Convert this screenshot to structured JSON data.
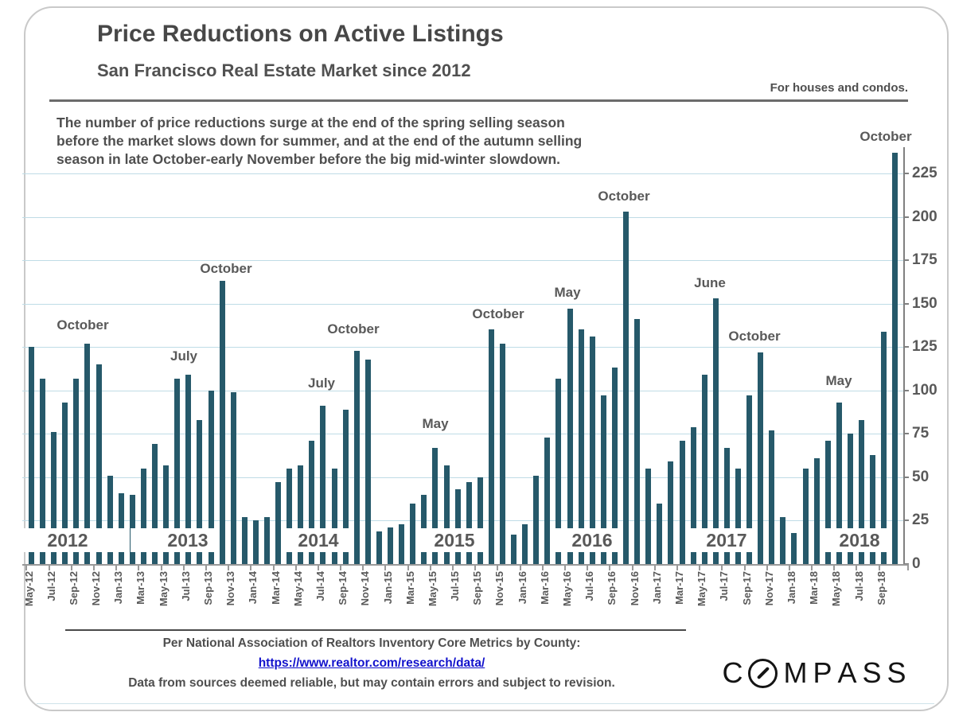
{
  "header": {
    "title": "Price Reductions on Active Listings",
    "subtitle": "San Francisco Real Estate Market since 2012",
    "tagline": "For houses and condos.",
    "description_lines": [
      "The number of price reductions surge at the end of the spring selling season",
      "before the market slows down for summer, and at the end of the autumn selling",
      "season in late October-early November before the big mid-winter slowdown."
    ]
  },
  "chart_data": {
    "type": "bar",
    "title": "Price Reductions on Active Listings",
    "xlabel": "",
    "ylabel": "",
    "ylim": [
      0,
      240
    ],
    "y_ticks": [
      0,
      25,
      50,
      75,
      100,
      125,
      150,
      175,
      200,
      225
    ],
    "y_axis_side": "right",
    "grid": true,
    "bar_color": "#26596A",
    "gridline_color": "#BFDCE6",
    "x_label_every": 2,
    "categories": [
      "May-12",
      "Jun-12",
      "Jul-12",
      "Aug-12",
      "Sep-12",
      "Oct-12",
      "Nov-12",
      "Dec-12",
      "Jan-13",
      "Feb-13",
      "Mar-13",
      "Apr-13",
      "May-13",
      "Jun-13",
      "Jul-13",
      "Aug-13",
      "Sep-13",
      "Oct-13",
      "Nov-13",
      "Dec-13",
      "Jan-14",
      "Feb-14",
      "Mar-14",
      "Apr-14",
      "May-14",
      "Jun-14",
      "Jul-14",
      "Aug-14",
      "Sep-14",
      "Oct-14",
      "Nov-14",
      "Dec-14",
      "Jan-15",
      "Feb-15",
      "Mar-15",
      "Apr-15",
      "May-15",
      "Jun-15",
      "Jul-15",
      "Aug-15",
      "Sep-15",
      "Oct-15",
      "Nov-15",
      "Dec-15",
      "Jan-16",
      "Feb-16",
      "Mar-16",
      "Apr-16",
      "May-16",
      "Jun-16",
      "Jul-16",
      "Aug-16",
      "Sep-16",
      "Oct-16",
      "Nov-16",
      "Dec-16",
      "Jan-17",
      "Feb-17",
      "Mar-17",
      "Apr-17",
      "May-17",
      "Jun-17",
      "Jul-17",
      "Aug-17",
      "Sep-17",
      "Oct-17",
      "Nov-17",
      "Dec-17",
      "Jan-18",
      "Feb-18",
      "Mar-18",
      "Apr-18",
      "May-18",
      "Jun-18",
      "Jul-18",
      "Aug-18",
      "Sep-18",
      "Oct-18"
    ],
    "values": [
      125,
      107,
      76,
      93,
      107,
      127,
      115,
      51,
      41,
      40,
      55,
      69,
      57,
      107,
      109,
      83,
      100,
      163,
      99,
      27,
      25,
      27,
      47,
      55,
      57,
      71,
      91,
      55,
      89,
      123,
      118,
      19,
      21,
      23,
      35,
      40,
      67,
      57,
      43,
      47,
      50,
      135,
      127,
      17,
      23,
      51,
      73,
      107,
      147,
      135,
      131,
      97,
      113,
      203,
      141,
      55,
      35,
      59,
      71,
      79,
      109,
      153,
      67,
      55,
      97,
      122,
      77,
      27,
      18,
      55,
      61,
      71,
      93,
      75,
      83,
      63,
      134,
      237
    ],
    "peak_annotations": [
      {
        "text": "October",
        "x": 104,
        "y": 399
      },
      {
        "text": "July",
        "x": 231,
        "y": 438
      },
      {
        "text": "October",
        "x": 284,
        "y": 328
      },
      {
        "text": "July",
        "x": 404,
        "y": 472
      },
      {
        "text": "October",
        "x": 444,
        "y": 404
      },
      {
        "text": "May",
        "x": 547,
        "y": 523
      },
      {
        "text": "October",
        "x": 626,
        "y": 385
      },
      {
        "text": "May",
        "x": 713,
        "y": 358
      },
      {
        "text": "October",
        "x": 784,
        "y": 237
      },
      {
        "text": "June",
        "x": 892,
        "y": 346
      },
      {
        "text": "October",
        "x": 948,
        "y": 413
      },
      {
        "text": "May",
        "x": 1054,
        "y": 469
      },
      {
        "text": "October",
        "x": 1113,
        "y": 162
      }
    ],
    "year_labels": [
      {
        "text": "2012",
        "left": 28,
        "width": 134,
        "cx": 85
      },
      {
        "text": "2013",
        "left": 164,
        "width": 110,
        "cx": 236
      },
      {
        "text": "2014",
        "left": 357,
        "width": 84,
        "cx": 400
      },
      {
        "text": "2015",
        "left": 524,
        "width": 84,
        "cx": 571
      },
      {
        "text": "2016",
        "left": 694,
        "width": 84,
        "cx": 744
      },
      {
        "text": "2017",
        "left": 862,
        "width": 84,
        "cx": 913
      },
      {
        "text": "2018",
        "left": 1032,
        "width": 84,
        "cx": 1080
      }
    ]
  },
  "footer": {
    "source_line": "Per National Association of Realtors Inventory Core Metrics by County:",
    "link_url": "https://www.realtor.com/research/data/",
    "disclaimer": "Data from sources deemed reliable, but may contain errors and subject to revision."
  },
  "logo": {
    "brand": "COMPASS"
  }
}
